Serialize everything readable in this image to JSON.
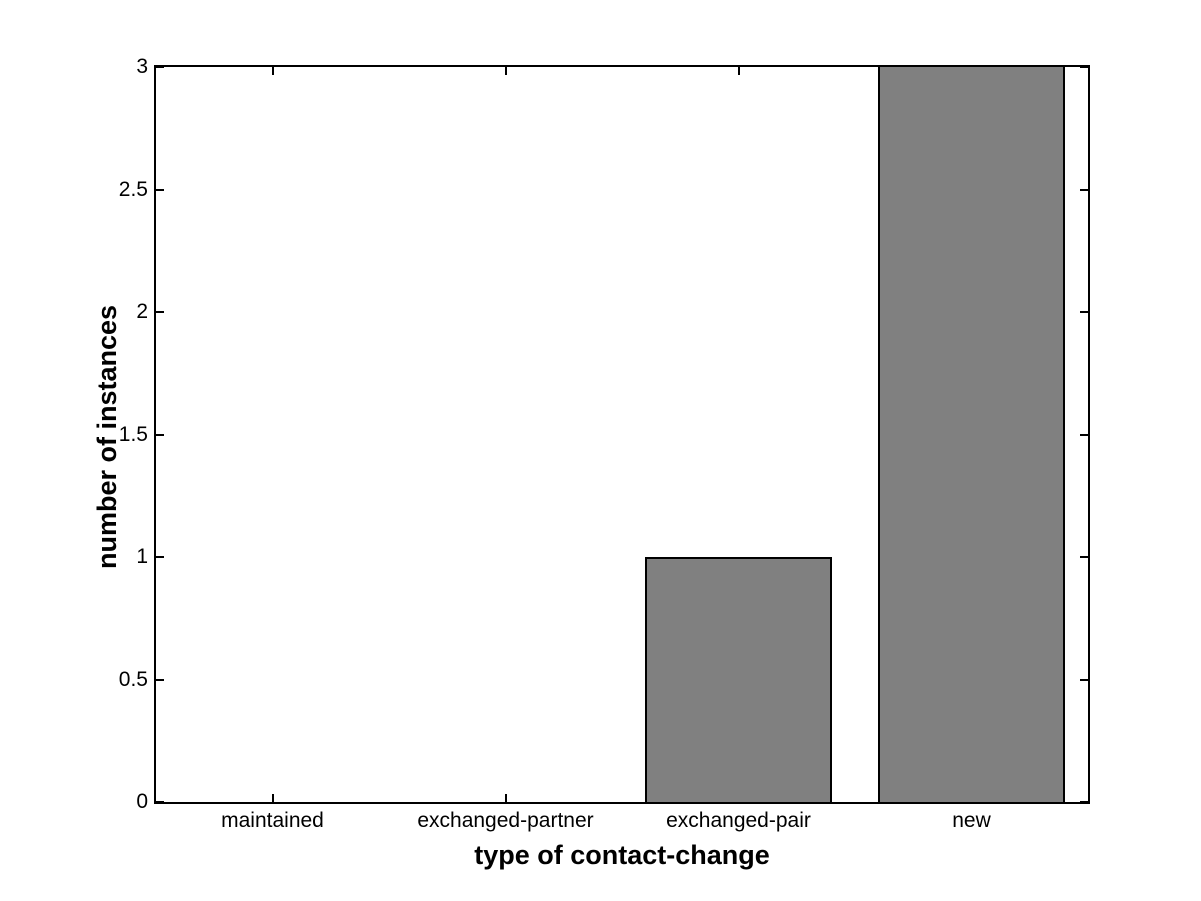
{
  "chart_data": {
    "type": "bar",
    "title": "",
    "categories": [
      "maintained",
      "exchanged-partner",
      "exchanged-pair",
      "new"
    ],
    "values": [
      0,
      0,
      1,
      3
    ],
    "xlabel": "type of contact-change",
    "ylabel": "number of instances",
    "xlim": [
      0.5,
      4.5
    ],
    "ylim": [
      0,
      3
    ],
    "yticks": [
      0,
      0.5,
      1,
      1.5,
      2,
      2.5,
      3
    ],
    "ytick_labels": [
      "0",
      "0.5",
      "1",
      "1.5",
      "2",
      "2.5",
      "3"
    ],
    "bar_width_fraction": 0.8,
    "bar_fill_color": "#808080",
    "bar_edge_color": "#000000",
    "axis_color": "#000000",
    "background_color": "#FFFFFF",
    "grid": false,
    "legend": null,
    "tick_direction": "in"
  }
}
